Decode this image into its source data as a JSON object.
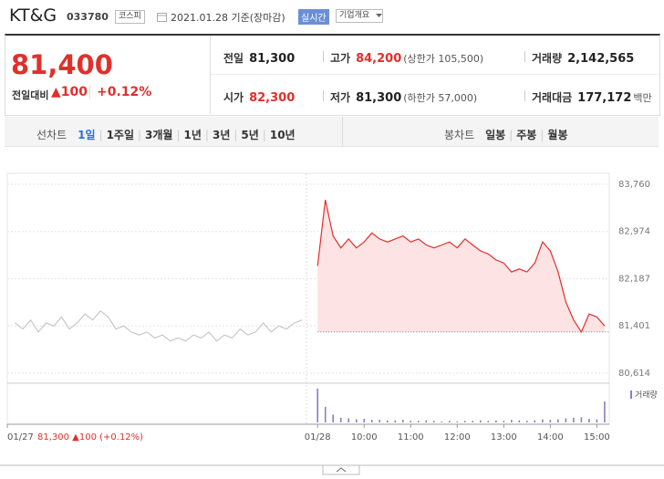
{
  "header": {
    "name": "KT&G",
    "code": "033780",
    "market": "코스피",
    "date": "2021.01.28 기준(장마감)",
    "realtime": "실시간",
    "company": "기업개요"
  },
  "price": {
    "current": "81,400",
    "change_label": "전일대비",
    "change": "▲100",
    "rate": "+0.12%"
  },
  "stats": [
    [
      {
        "label": "전일",
        "value": "81,300"
      },
      {
        "label": "고가",
        "value": "84,200",
        "note": "(상한가 105,500)",
        "color": "#e0302c"
      },
      {
        "label": "거래량",
        "value": "2,142,565"
      }
    ],
    [
      {
        "label": "시가",
        "value": "82,300",
        "color": "#e0302c"
      },
      {
        "label": "저가",
        "value": "81,300",
        "note": "(하한가 57,000)"
      },
      {
        "label": "거래대금",
        "value": "177,172",
        "note": "백만"
      }
    ]
  ],
  "tabs": {
    "line_label": "선차트",
    "line": [
      "1일",
      "1주일",
      "3개월",
      "1년",
      "3년",
      "5년",
      "10년"
    ],
    "active": 0,
    "candle_label": "봉차트",
    "candle": [
      "일봉",
      "주봉",
      "월봉"
    ]
  },
  "chart_data": {
    "type": "line",
    "xlim": [
      -400,
      376
    ],
    "ylim": [
      80614,
      83760
    ],
    "yticks": [
      {
        "value": 83760,
        "label": "83,760"
      },
      {
        "value": 82974,
        "label": "82,974"
      },
      {
        "value": 82187,
        "label": "82,187"
      },
      {
        "value": 81401,
        "label": "81,401"
      },
      {
        "value": 80614,
        "label": "80,614"
      }
    ],
    "xticks": [
      {
        "value": -400,
        "label": "01/27"
      },
      {
        "value": 0,
        "label": "01/28"
      },
      {
        "value": 60,
        "label": "10:00"
      },
      {
        "value": 120,
        "label": "11:00"
      },
      {
        "value": 180,
        "label": "12:00"
      },
      {
        "value": 240,
        "label": "13:00"
      },
      {
        "value": 300,
        "label": "14:00"
      },
      {
        "value": 360,
        "label": "15:00"
      }
    ],
    "baseline": 81300,
    "annotation": "81,300 ▲100 (+0.12%)",
    "grid": true,
    "series": [
      {
        "color": "#c8c8c8",
        "x": [
          -390,
          -380,
          -370,
          -360,
          -350,
          -340,
          -330,
          -320,
          -310,
          -300,
          -290,
          -280,
          -270,
          -260,
          -250,
          -240,
          -230,
          -220,
          -210,
          -200,
          -190,
          -180,
          -170,
          -160,
          -150,
          -140,
          -130,
          -120,
          -110,
          -100,
          -90,
          -80,
          -70,
          -60,
          -50,
          -40,
          -30,
          -20
        ],
        "values": [
          81450,
          81350,
          81500,
          81300,
          81450,
          81400,
          81550,
          81350,
          81450,
          81600,
          81500,
          81650,
          81550,
          81350,
          81400,
          81300,
          81250,
          81300,
          81200,
          81250,
          81150,
          81200,
          81150,
          81250,
          81200,
          81300,
          81150,
          81250,
          81200,
          81350,
          81250,
          81300,
          81450,
          81300,
          81400,
          81350,
          81450,
          81500
        ]
      },
      {
        "color": "#e0302c",
        "fill": "#fde3e3",
        "x": [
          0,
          10,
          20,
          30,
          40,
          50,
          60,
          70,
          80,
          90,
          100,
          110,
          120,
          130,
          140,
          150,
          160,
          170,
          180,
          190,
          200,
          210,
          220,
          230,
          240,
          250,
          260,
          270,
          280,
          290,
          300,
          310,
          320,
          330,
          340,
          350,
          360,
          370
        ],
        "values": [
          82400,
          83500,
          82900,
          82700,
          82850,
          82700,
          82800,
          82950,
          82850,
          82800,
          82850,
          82900,
          82800,
          82850,
          82750,
          82700,
          82750,
          82800,
          82700,
          82850,
          82750,
          82650,
          82600,
          82500,
          82450,
          82300,
          82350,
          82300,
          82450,
          82800,
          82650,
          82300,
          81800,
          81500,
          81300,
          81600,
          81550,
          81400
        ]
      }
    ],
    "volume": {
      "name": "거래량",
      "color": "#8e7cc3",
      "ylim": [
        0,
        70000
      ],
      "x": [
        0,
        10,
        20,
        30,
        40,
        50,
        60,
        70,
        80,
        90,
        100,
        110,
        120,
        130,
        140,
        150,
        160,
        170,
        180,
        190,
        200,
        210,
        220,
        230,
        240,
        250,
        260,
        270,
        280,
        290,
        300,
        310,
        320,
        330,
        340,
        350,
        360,
        370
      ],
      "values": [
        65000,
        30000,
        15000,
        9000,
        8000,
        6000,
        7000,
        5000,
        5000,
        4000,
        4000,
        5000,
        3000,
        3000,
        4000,
        3000,
        2000,
        3000,
        2000,
        3000,
        3000,
        4000,
        3000,
        4000,
        3000,
        5000,
        4000,
        3000,
        4000,
        6000,
        5000,
        6000,
        8000,
        9000,
        10000,
        7000,
        6000,
        40000
      ]
    }
  }
}
